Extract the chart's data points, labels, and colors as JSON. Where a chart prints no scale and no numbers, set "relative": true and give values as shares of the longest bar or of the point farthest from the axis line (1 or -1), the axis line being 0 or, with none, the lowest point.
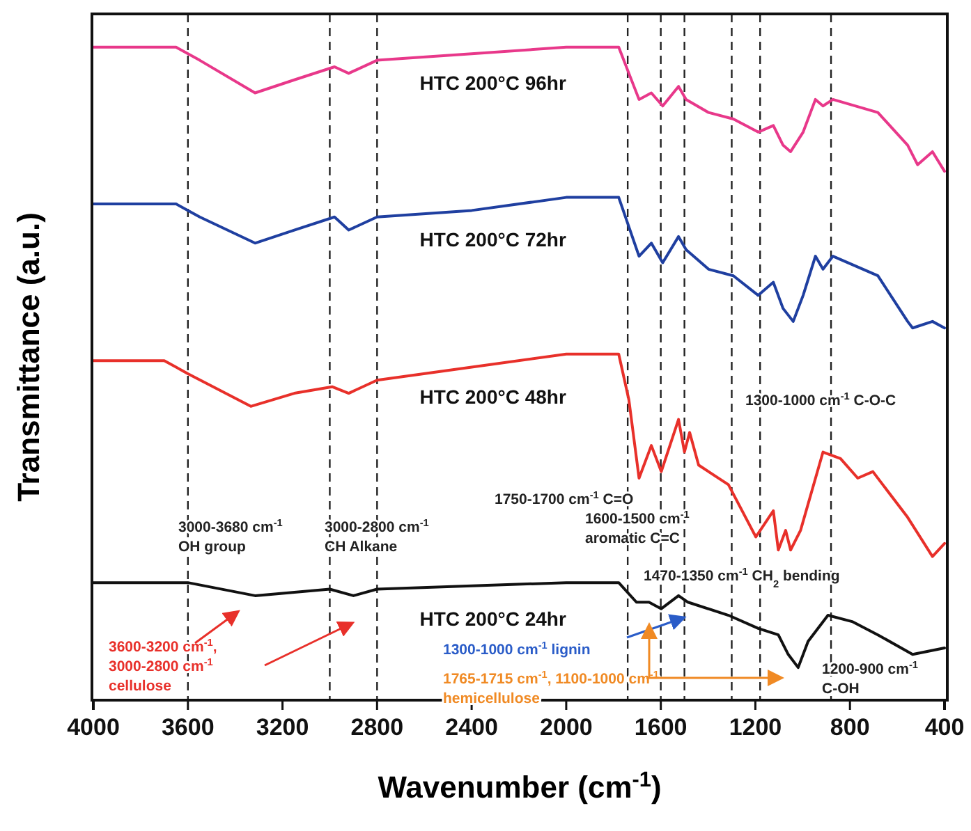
{
  "chart_data": {
    "type": "line",
    "relative": true,
    "xlabel": "Wavenumber (cm$^{-1}$)",
    "ylabel": "Transmittance (a.u.)",
    "xlim": [
      4000,
      400
    ],
    "xticks": [
      4000,
      3600,
      3200,
      2800,
      2400,
      2000,
      1600,
      1200,
      800,
      400
    ],
    "legend": false,
    "grid": false,
    "tick_labels": "x",
    "series": [
      {
        "name": "HTC 200°C 96hr",
        "color": "#e8388a",
        "x": [
          4000,
          3650,
          3550,
          3316,
          3150,
          2980,
          2920,
          2800,
          2400,
          2000,
          1778,
          1735,
          1692,
          1640,
          1592,
          1525,
          1493,
          1398,
          1293,
          1188,
          1124,
          1083,
          1051,
          998,
          946,
          914,
          872,
          682,
          556,
          514,
          451,
          400
        ],
        "values": [
          1.0,
          1.0,
          0.98,
          0.93,
          0.95,
          0.97,
          0.96,
          0.98,
          0.99,
          1.0,
          1.0,
          0.96,
          0.92,
          0.93,
          0.91,
          0.94,
          0.92,
          0.9,
          0.89,
          0.87,
          0.88,
          0.85,
          0.84,
          0.87,
          0.92,
          0.91,
          0.92,
          0.9,
          0.85,
          0.82,
          0.84,
          0.81
        ]
      },
      {
        "name": "HTC 200°C 72hr",
        "color": "#1f3fa0",
        "x": [
          4000,
          3650,
          3550,
          3316,
          3150,
          2980,
          2920,
          2800,
          2400,
          2000,
          1778,
          1692,
          1640,
          1592,
          1525,
          1493,
          1398,
          1293,
          1188,
          1124,
          1083,
          1040,
          998,
          946,
          914,
          872,
          682,
          556,
          535,
          451,
          400
        ],
        "values": [
          0.76,
          0.76,
          0.74,
          0.7,
          0.72,
          0.74,
          0.72,
          0.74,
          0.75,
          0.77,
          0.77,
          0.68,
          0.7,
          0.67,
          0.71,
          0.69,
          0.66,
          0.65,
          0.62,
          0.64,
          0.6,
          0.58,
          0.62,
          0.68,
          0.66,
          0.68,
          0.65,
          0.58,
          0.57,
          0.58,
          0.57
        ]
      },
      {
        "name": "HTC 200°C 48hr",
        "color": "#e8302a",
        "x": [
          4000,
          3700,
          3600,
          3334,
          3150,
          2990,
          2920,
          2800,
          2400,
          2000,
          1778,
          1735,
          1692,
          1640,
          1598,
          1525,
          1500,
          1478,
          1440,
          1314,
          1198,
          1124,
          1103,
          1072,
          1051,
          1009,
          914,
          840,
          767,
          703,
          556,
          451,
          400
        ],
        "values": [
          0.52,
          0.52,
          0.5,
          0.45,
          0.47,
          0.48,
          0.47,
          0.49,
          0.51,
          0.53,
          0.53,
          0.46,
          0.34,
          0.39,
          0.35,
          0.43,
          0.38,
          0.41,
          0.36,
          0.33,
          0.25,
          0.29,
          0.23,
          0.26,
          0.23,
          0.26,
          0.38,
          0.37,
          0.34,
          0.35,
          0.28,
          0.22,
          0.24
        ]
      },
      {
        "name": "HTC 200°C 24hr",
        "color": "#111111",
        "x": [
          4000,
          3600,
          3316,
          3000,
          2900,
          2800,
          2000,
          1778,
          1703,
          1650,
          1598,
          1525,
          1485,
          1314,
          1188,
          1103,
          1061,
          1019,
          977,
          893,
          788,
          682,
          535,
          400
        ],
        "values": [
          0.18,
          0.18,
          0.16,
          0.17,
          0.16,
          0.17,
          0.18,
          0.18,
          0.15,
          0.15,
          0.14,
          0.16,
          0.15,
          0.13,
          0.11,
          0.1,
          0.07,
          0.05,
          0.09,
          0.13,
          0.12,
          0.1,
          0.07,
          0.08
        ]
      }
    ],
    "ref_lines": [
      {
        "axis": "x",
        "value": 3600,
        "line_style": "dashed"
      },
      {
        "axis": "x",
        "value": 3000,
        "line_style": "dashed"
      },
      {
        "axis": "x",
        "value": 2800,
        "line_style": "dashed"
      },
      {
        "axis": "x",
        "value": 1740,
        "line_style": "dashed"
      },
      {
        "axis": "x",
        "value": 1600,
        "line_style": "dashed"
      },
      {
        "axis": "x",
        "value": 1500,
        "line_style": "dashed"
      },
      {
        "axis": "x",
        "value": 1300,
        "line_style": "dashed"
      },
      {
        "axis": "x",
        "value": 1180,
        "line_style": "dashed"
      },
      {
        "axis": "x",
        "value": 880,
        "line_style": "dashed"
      }
    ],
    "annotations": [
      "3000-3680 cm$^{-1}$\nOH group",
      "3000-2800 cm$^{-1}$\nCH Alkane",
      "1750-1700 cm$^{-1}$ C=O",
      "1600-1500 cm$^{-1}$\naromatic C=C",
      "1470-1350 cm$^{-1}$ CH$_{2}$ bending",
      "1300-1000 cm$^{-1}$ C-O-C",
      "1200-900 cm$^{-1}$\nC-OH",
      "3600-3200 cm$^{-1}$,\n3000-2800 cm$^{-1}$\ncellulose",
      "1300-1000 cm$^{-1}$ lignin",
      "1765-1715 cm$^{-1}$, 1100-1000 cm$^{-1}$\nhemicellulose"
    ]
  }
}
